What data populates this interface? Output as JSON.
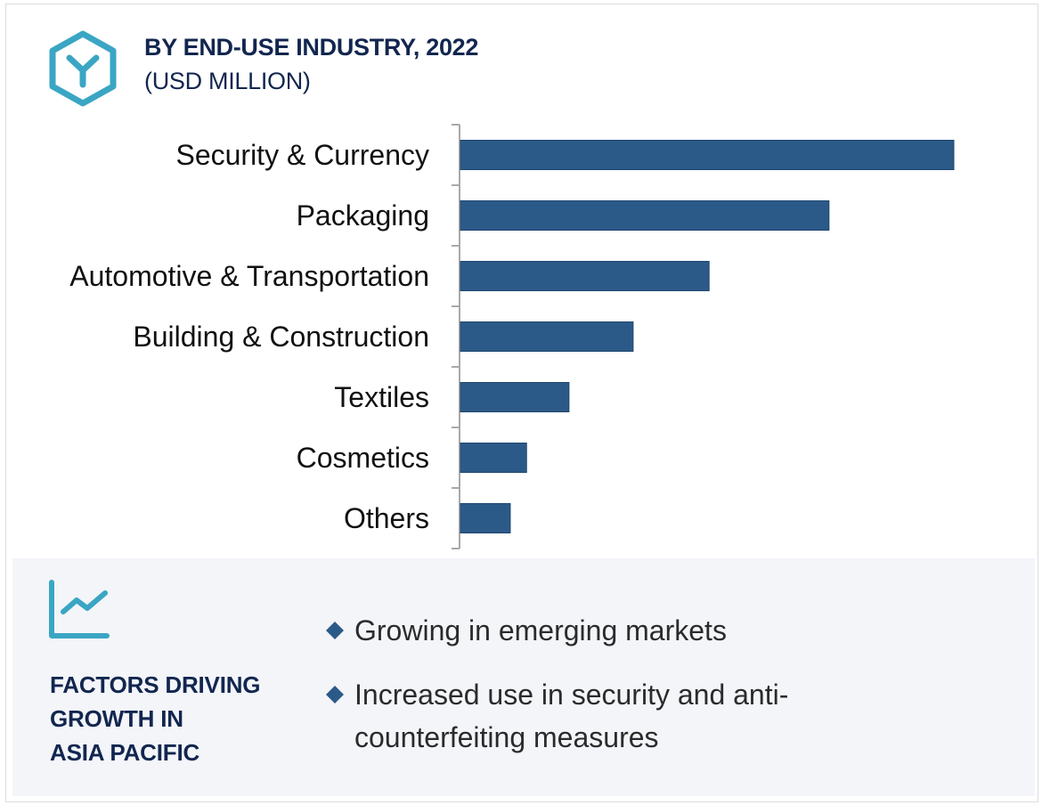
{
  "header": {
    "title": "BY END-USE INDUSTRY, 2022",
    "subtitle": "(USD MILLION)",
    "icon": "hexagon-y-icon"
  },
  "colors": {
    "bar": "#2c5a88",
    "title": "#12264f",
    "icon_accent": "#3aa6c4",
    "panel_bg": "#f3f5f9"
  },
  "chart_data": {
    "type": "bar",
    "orientation": "horizontal",
    "title": "BY END-USE INDUSTRY, 2022",
    "subtitle": "(USD MILLION)",
    "xlabel": "",
    "ylabel": "",
    "value_unit": "relative (largest = 100); no numeric axis shown",
    "categories": [
      "Security & Currency",
      "Packaging",
      "Automotive & Transportation",
      "Building & Construction",
      "Textiles",
      "Cosmetics",
      "Others"
    ],
    "values": [
      100,
      74.7,
      50.4,
      35.0,
      22.0,
      13.4,
      10.1
    ],
    "xlim": [
      0,
      100
    ],
    "grid": false,
    "legend": "none"
  },
  "panel": {
    "icon": "trend-chart-icon",
    "heading_lines": [
      "FACTORS DRIVING",
      "GROWTH IN",
      "ASIA PACIFIC"
    ],
    "bullets": [
      "Growing in emerging markets",
      "Increased use in security and anti-counterfeiting measures"
    ]
  }
}
